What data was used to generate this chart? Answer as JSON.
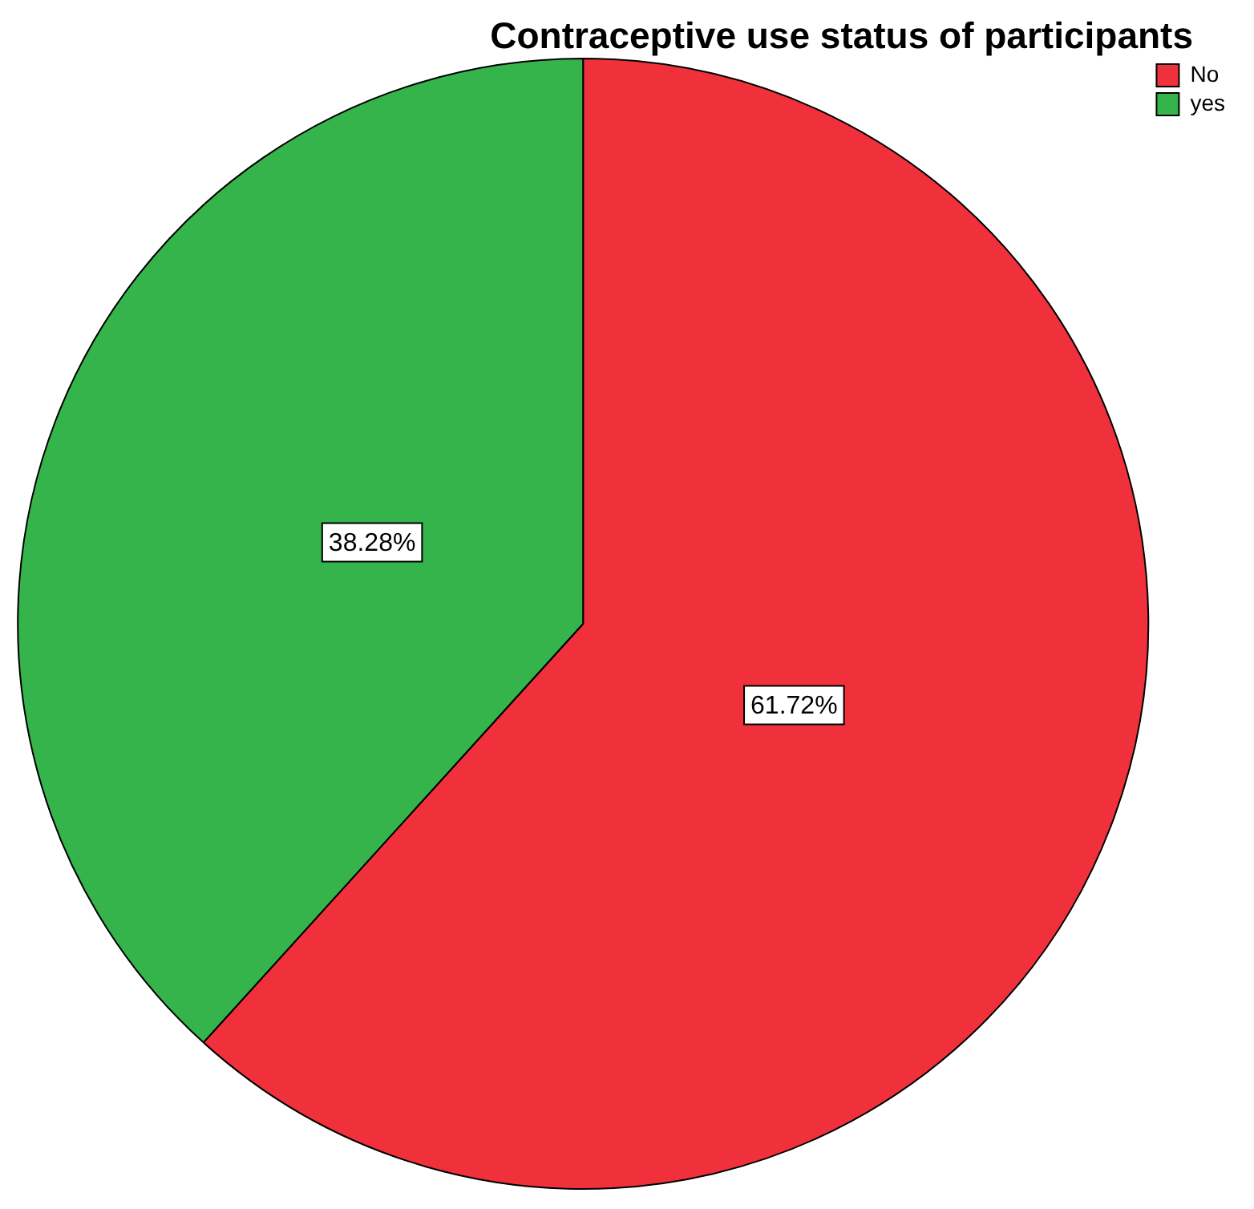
{
  "chart_data": {
    "type": "pie",
    "title": "Contraceptive use status of participants",
    "categories": [
      "No",
      "yes"
    ],
    "values": [
      61.72,
      38.28
    ],
    "colors": [
      "#f0313b",
      "#34b44a"
    ],
    "value_labels": [
      "61.72%",
      "38.28%"
    ],
    "legend": "top right"
  }
}
